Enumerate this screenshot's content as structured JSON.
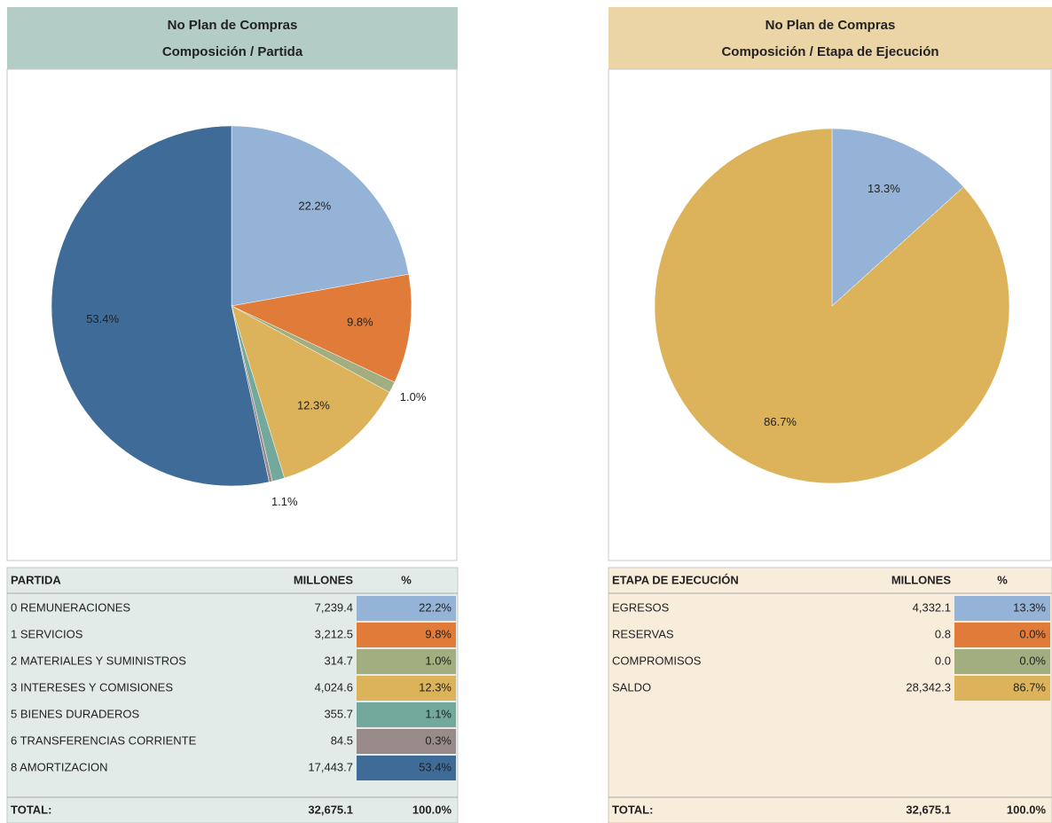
{
  "chart_data": [
    {
      "type": "pie",
      "title": "No Plan de Compras",
      "subtitle": "Composición / Partida",
      "values": [
        22.2,
        9.8,
        1.0,
        12.3,
        1.1,
        0.3,
        53.4
      ],
      "value_labels": [
        "22.2%",
        "9.8%",
        "1.0%",
        "12.3%",
        "1.1%",
        null,
        "53.4%"
      ],
      "colors": [
        "#95b3d7",
        "#e07b3a",
        "#a2ad80",
        "#dcb35a",
        "#72a99c",
        "#9a8b8b",
        "#3e6b97"
      ]
    },
    {
      "type": "pie",
      "title": "No Plan de Compras",
      "subtitle": "Composición / Etapa de Ejecución",
      "values": [
        13.3,
        0.0,
        0.0,
        86.7
      ],
      "value_labels": [
        "13.3%",
        null,
        null,
        "86.7%"
      ],
      "colors": [
        "#95b3d7",
        "#e07b3a",
        "#a2ad80",
        "#dcb35a"
      ]
    }
  ],
  "tables": [
    {
      "headers": [
        "PARTIDA",
        "MILLONES",
        "%"
      ],
      "rows": [
        [
          "0 REMUNERACIONES",
          "7,239.4",
          "22.2%"
        ],
        [
          "1 SERVICIOS",
          "3,212.5",
          "9.8%"
        ],
        [
          "2 MATERIALES Y SUMINISTROS",
          "314.7",
          "1.0%"
        ],
        [
          "3 INTERESES Y COMISIONES",
          "4,024.6",
          "12.3%"
        ],
        [
          "5 BIENES DURADEROS",
          "355.7",
          "1.1%"
        ],
        [
          "6 TRANSFERENCIAS CORRIENTE",
          "84.5",
          "0.3%"
        ],
        [
          "8 AMORTIZACION",
          "17,443.7",
          "53.4%"
        ]
      ],
      "total": [
        "TOTAL:",
        "32,675.1",
        "100.0%"
      ]
    },
    {
      "headers": [
        "ETAPA DE EJECUCIÓN",
        "MILLONES",
        "%"
      ],
      "rows": [
        [
          "EGRESOS",
          "4,332.1",
          "13.3%"
        ],
        [
          "RESERVAS",
          "0.8",
          "0.0%"
        ],
        [
          "COMPROMISOS",
          "0.0",
          "0.0%"
        ],
        [
          "SALDO",
          "28,342.3",
          "86.7%"
        ]
      ],
      "total": [
        "TOTAL:",
        "32,675.1",
        "100.0%"
      ]
    }
  ]
}
